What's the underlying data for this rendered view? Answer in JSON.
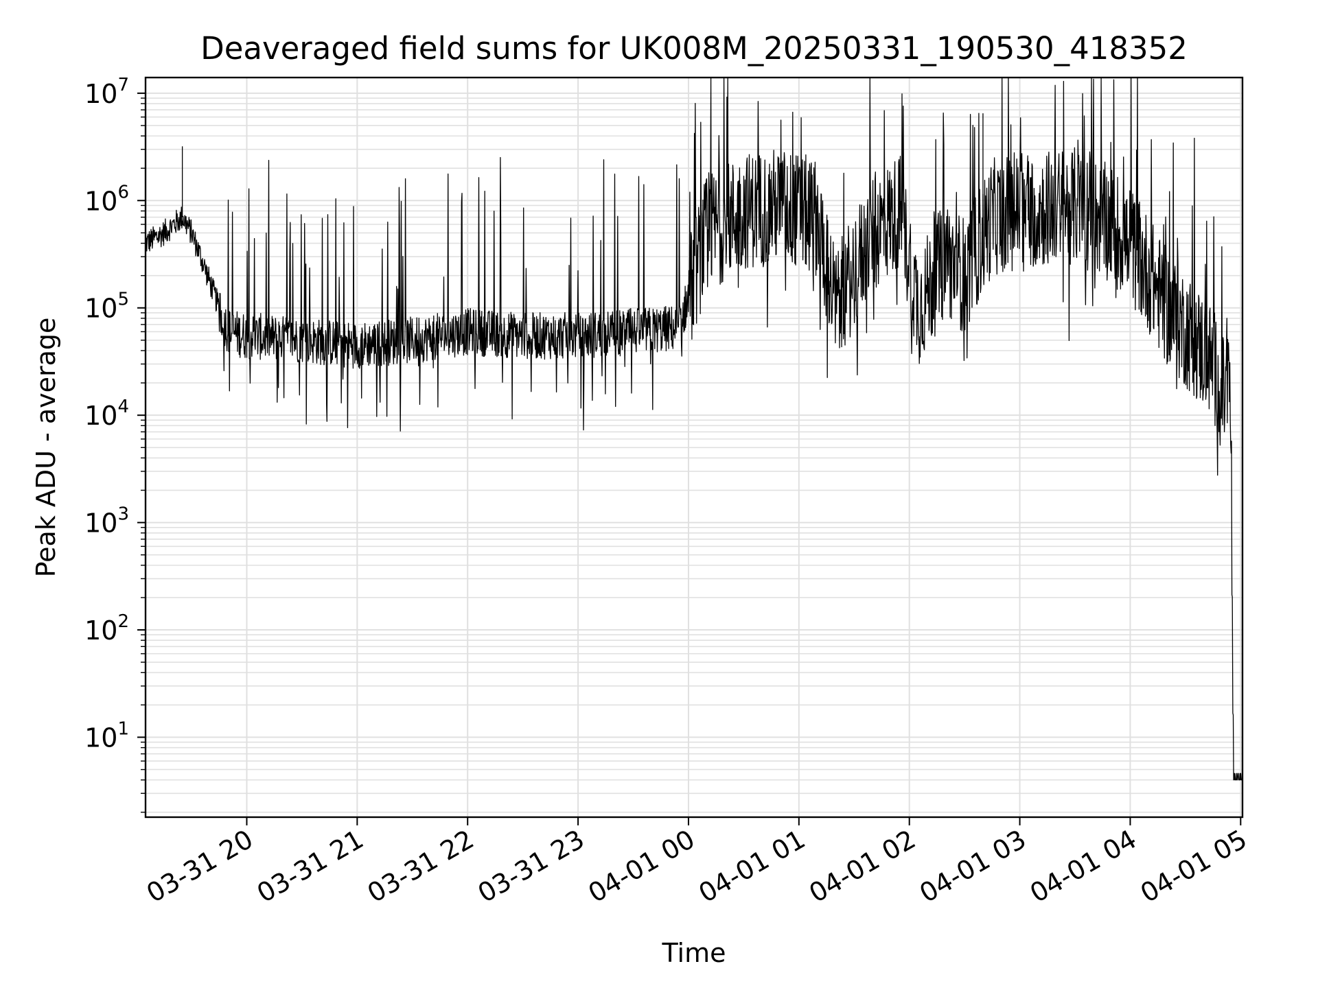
{
  "chart_data": {
    "type": "line",
    "title": "Deaveraged field sums for UK008M_20250331_190530_418352",
    "xlabel": "Time",
    "ylabel": "Peak ADU - average",
    "yscale": "log",
    "ylim": [
      1.8,
      14000000
    ],
    "xlim": [
      "2025-03-31 19:05",
      "2025-04-01 05:01"
    ],
    "grid": true,
    "line_color": "#000000",
    "grid_color": "#e0e0e0",
    "x_ticks": [
      "03-31 20",
      "03-31 21",
      "03-31 22",
      "03-31 23",
      "04-01 00",
      "04-01 01",
      "04-01 02",
      "04-01 03",
      "04-01 04",
      "04-01 05"
    ],
    "x_tick_times": [
      "2025-03-31 20:00",
      "2025-03-31 21:00",
      "2025-03-31 22:00",
      "2025-03-31 23:00",
      "2025-04-01 00:00",
      "2025-04-01 01:00",
      "2025-04-01 02:00",
      "2025-04-01 03:00",
      "2025-04-01 04:00",
      "2025-04-01 05:00"
    ],
    "y_ticks": [
      {
        "base": "10",
        "exp": "1",
        "value": 10
      },
      {
        "base": "10",
        "exp": "2",
        "value": 100
      },
      {
        "base": "10",
        "exp": "3",
        "value": 1000
      },
      {
        "base": "10",
        "exp": "4",
        "value": 10000
      },
      {
        "base": "10",
        "exp": "5",
        "value": 100000
      },
      {
        "base": "10",
        "exp": "6",
        "value": 1000000
      },
      {
        "base": "10",
        "exp": "7",
        "value": 10000000
      }
    ],
    "series": [
      {
        "x": [
          "2025-03-31 19:05",
          "2025-03-31 19:15",
          "2025-03-31 19:25",
          "2025-03-31 19:30",
          "2025-03-31 19:35",
          "2025-03-31 19:45",
          "2025-03-31 19:50",
          "2025-03-31 20:00",
          "2025-03-31 20:30",
          "2025-03-31 21:00",
          "2025-03-31 21:30",
          "2025-03-31 22:00",
          "2025-03-31 22:30",
          "2025-03-31 23:00",
          "2025-03-31 23:30",
          "2025-03-31 23:55",
          "2025-04-01 00:10",
          "2025-04-01 00:30",
          "2025-04-01 00:50",
          "2025-04-01 01:10",
          "2025-04-01 01:20",
          "2025-04-01 01:40",
          "2025-04-01 01:55",
          "2025-04-01 02:05",
          "2025-04-01 02:20",
          "2025-04-01 02:30",
          "2025-04-01 02:45",
          "2025-04-01 03:00",
          "2025-04-01 03:30",
          "2025-04-01 03:50",
          "2025-04-01 04:05",
          "2025-04-01 04:20",
          "2025-04-01 04:35",
          "2025-04-01 04:45",
          "2025-04-01 04:50",
          "2025-04-01 04:54",
          "2025-04-01 04:55",
          "2025-04-01 04:56",
          "2025-04-01 05:01"
        ],
        "values": [
          400000,
          500000,
          700000,
          500000,
          300000,
          100000,
          60000,
          55000,
          50000,
          45000,
          50000,
          60000,
          55000,
          55000,
          60000,
          65000,
          500000,
          800000,
          900000,
          700000,
          100000,
          500000,
          800000,
          100000,
          300000,
          200000,
          700000,
          800000,
          900000,
          600000,
          300000,
          100000,
          50000,
          30000,
          15000,
          20000,
          3000,
          4,
          4
        ]
      }
    ],
    "max_spike": {
      "time": "2025-04-01 02:40",
      "value": 6500000
    },
    "early_spike": {
      "time": "2025-03-31 19:25",
      "value": 3200000
    }
  }
}
